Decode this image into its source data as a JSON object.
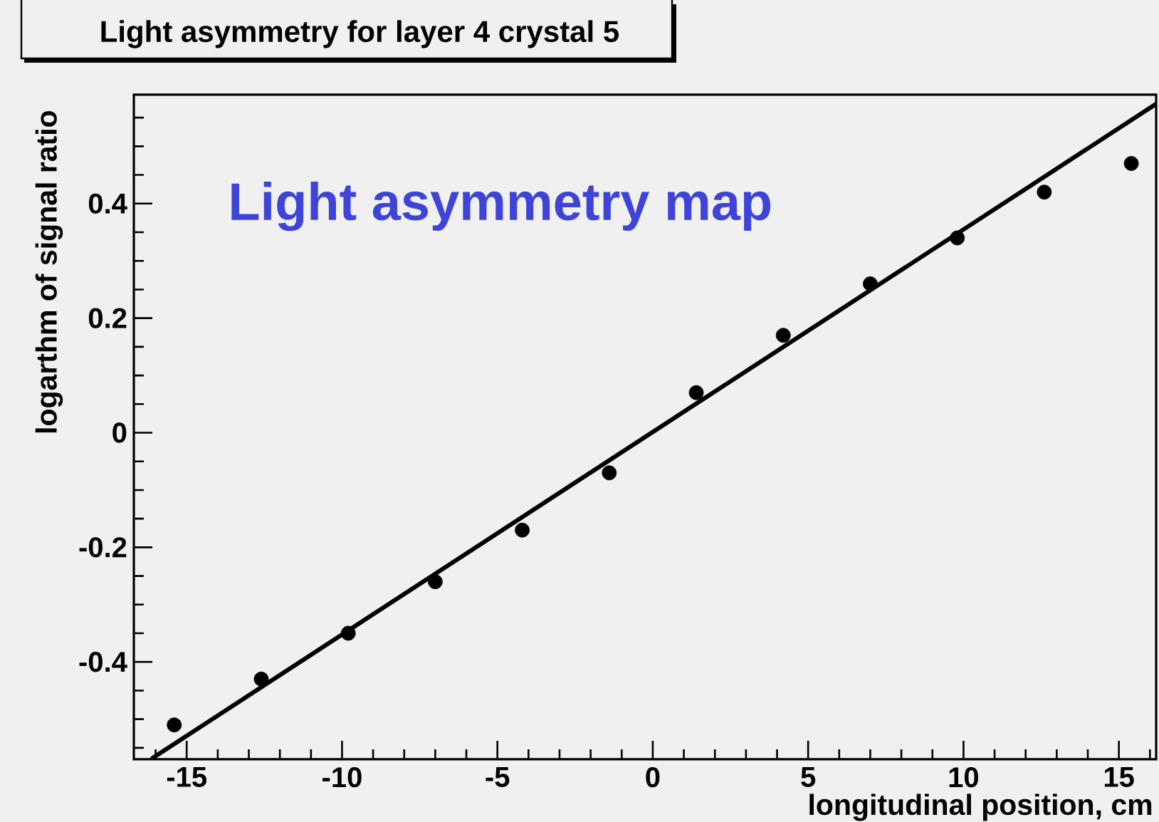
{
  "chart_data": {
    "type": "scatter",
    "title": "Light asymmetry for layer 4 crystal 5",
    "xlabel": "longitudinal position, cm",
    "ylabel": "logarthm of signal ratio",
    "annotations": [
      "Light asymmetry map"
    ],
    "x": [
      -15.4,
      -12.6,
      -9.8,
      -7.0,
      -4.2,
      -1.4,
      1.4,
      4.2,
      7.0,
      9.8,
      12.6,
      15.4
    ],
    "series": [
      {
        "color": "#000000",
        "marker": "circle",
        "values": [
          -0.51,
          -0.43,
          -0.35,
          -0.26,
          -0.17,
          -0.07,
          0.07,
          0.17,
          0.26,
          0.34,
          0.42,
          0.47
        ]
      },
      {
        "type": "line",
        "color": "#000000",
        "line_style": "solid",
        "x": [
          -16.1,
          16.2
        ],
        "values": [
          -0.568,
          0.574
        ]
      }
    ],
    "grid": false,
    "xlim": [
      -16.7,
      16.2
    ],
    "ylim": [
      -0.57,
      0.59
    ],
    "xticks": [
      {
        "value": -16,
        "label": null
      },
      -15,
      {
        "value": -14,
        "label": null
      },
      {
        "value": -13,
        "label": null
      },
      {
        "value": -12,
        "label": null
      },
      {
        "value": -11,
        "label": null
      },
      -10,
      {
        "value": -9,
        "label": null
      },
      {
        "value": -8,
        "label": null
      },
      {
        "value": -7,
        "label": null
      },
      {
        "value": -6,
        "label": null
      },
      -5,
      {
        "value": -4,
        "label": null
      },
      {
        "value": -3,
        "label": null
      },
      {
        "value": -2,
        "label": null
      },
      {
        "value": -1,
        "label": null
      },
      0,
      {
        "value": 1,
        "label": null
      },
      {
        "value": 2,
        "label": null
      },
      {
        "value": 3,
        "label": null
      },
      {
        "value": 4,
        "label": null
      },
      5,
      {
        "value": 6,
        "label": null
      },
      {
        "value": 7,
        "label": null
      },
      {
        "value": 8,
        "label": null
      },
      {
        "value": 9,
        "label": null
      },
      10,
      {
        "value": 11,
        "label": null
      },
      {
        "value": 12,
        "label": null
      },
      {
        "value": 13,
        "label": null
      },
      {
        "value": 14,
        "label": null
      },
      15,
      {
        "value": 16,
        "label": null
      }
    ],
    "yticks": [
      {
        "value": -0.55,
        "label": null
      },
      {
        "value": -0.5,
        "label": null
      },
      {
        "value": -0.45,
        "label": null
      },
      -0.4,
      {
        "value": -0.35,
        "label": null
      },
      {
        "value": -0.3,
        "label": null
      },
      {
        "value": -0.25,
        "label": null
      },
      -0.2,
      {
        "value": -0.15,
        "label": null
      },
      {
        "value": -0.1,
        "label": null
      },
      {
        "value": -0.05,
        "label": null
      },
      0,
      {
        "value": 0.05,
        "label": null
      },
      {
        "value": 0.1,
        "label": null
      },
      {
        "value": 0.15,
        "label": null
      },
      0.2,
      {
        "value": 0.25,
        "label": null
      },
      {
        "value": 0.3,
        "label": null
      },
      {
        "value": 0.35,
        "label": null
      },
      0.4,
      {
        "value": 0.45,
        "label": null
      },
      {
        "value": 0.5,
        "label": null
      },
      {
        "value": 0.55,
        "label": null
      }
    ]
  }
}
